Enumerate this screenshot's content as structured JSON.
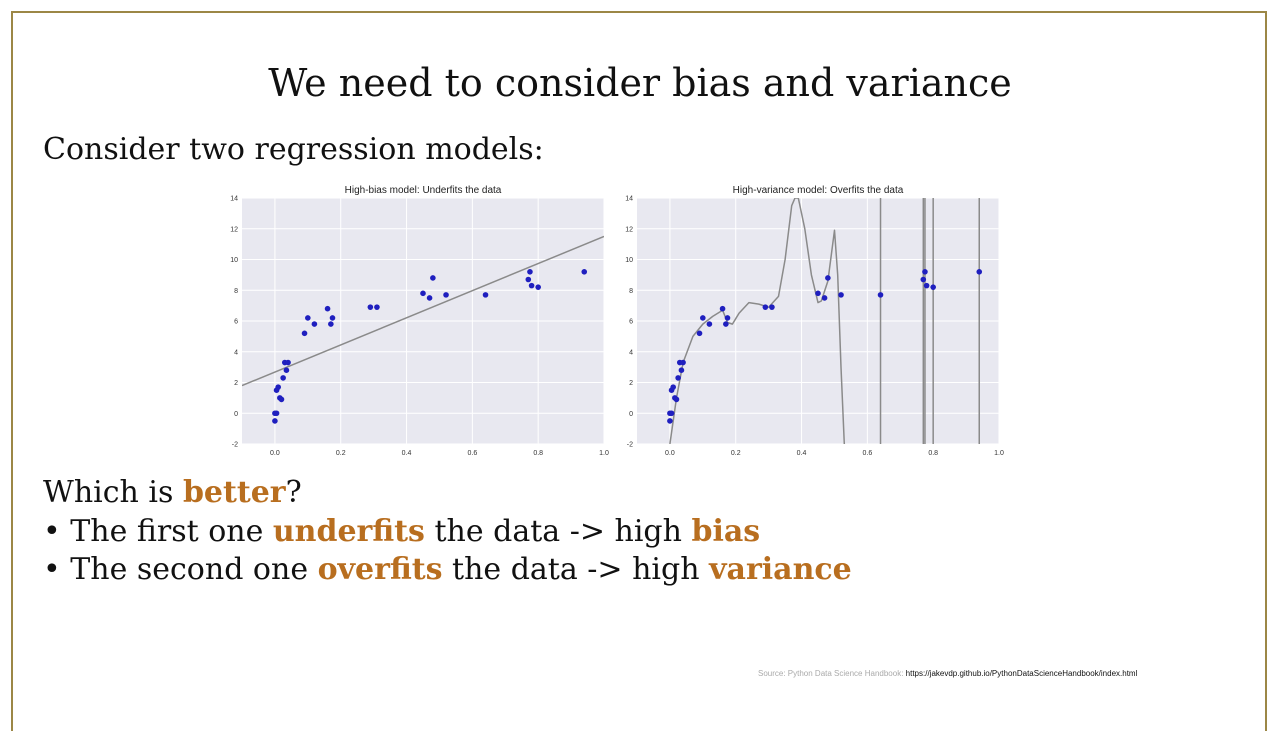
{
  "slide": {
    "title": "We need to consider bias and variance",
    "intro": "Consider two regression models:",
    "question": {
      "pre": "Which is ",
      "highlight": "better",
      "post": "?"
    },
    "bullets": [
      {
        "bullet": "• ",
        "t1": "The first one ",
        "h1": "underfits",
        "t2": " the data -> high ",
        "h2": "bias"
      },
      {
        "bullet": "• ",
        "t1": "The second one ",
        "h1": "overfits",
        "t2": " the data -> high ",
        "h2": "variance"
      }
    ],
    "source": {
      "label": "Source: Python Data Science  Handbook:",
      "url": "https://jakevdp.github.io/PythonDataScienceHandbook/index.html"
    },
    "colors": {
      "highlight": "#b86e1f",
      "frame": "#9c8746",
      "points": "#1f1fbf",
      "fit": "#8a8a8a",
      "plot_bg": "#e8e8f0"
    }
  },
  "chart_data": [
    {
      "type": "scatter",
      "title": "High-bias model: Underfits the data",
      "xlim": [
        -0.1,
        1.0
      ],
      "ylim": [
        -2,
        14
      ],
      "xticks": [
        "0.0",
        "0.2",
        "0.4",
        "0.6",
        "0.8",
        "1.0"
      ],
      "yticks": [
        "-2",
        "0",
        "2",
        "4",
        "6",
        "8",
        "10",
        "12",
        "14"
      ],
      "grid": true,
      "x": [
        0.0,
        0.0,
        0.005,
        0.005,
        0.01,
        0.015,
        0.02,
        0.025,
        0.03,
        0.035,
        0.04,
        0.09,
        0.1,
        0.12,
        0.16,
        0.17,
        0.175,
        0.29,
        0.31,
        0.45,
        0.47,
        0.48,
        0.52,
        0.64,
        0.77,
        0.775,
        0.78,
        0.8,
        0.94
      ],
      "y": [
        -0.5,
        0.0,
        0.0,
        1.5,
        1.7,
        1.0,
        0.9,
        2.3,
        3.3,
        2.8,
        3.3,
        5.2,
        6.2,
        5.8,
        6.8,
        5.8,
        6.2,
        6.9,
        6.9,
        7.8,
        7.5,
        8.8,
        7.7,
        7.7,
        8.7,
        9.2,
        8.3,
        8.2,
        9.2
      ],
      "fit_line": {
        "x": [
          -0.1,
          1.0
        ],
        "y": [
          1.8,
          11.5
        ]
      }
    },
    {
      "type": "scatter",
      "title": "High-variance model: Overfits the data",
      "xlim": [
        -0.1,
        1.0
      ],
      "ylim": [
        -2,
        14
      ],
      "xticks": [
        "0.0",
        "0.2",
        "0.4",
        "0.6",
        "0.8",
        "1.0"
      ],
      "yticks": [
        "-2",
        "0",
        "2",
        "4",
        "6",
        "8",
        "10",
        "12",
        "14"
      ],
      "grid": true,
      "x": [
        0.0,
        0.0,
        0.005,
        0.005,
        0.01,
        0.015,
        0.02,
        0.025,
        0.03,
        0.035,
        0.04,
        0.09,
        0.1,
        0.12,
        0.16,
        0.17,
        0.175,
        0.29,
        0.31,
        0.45,
        0.47,
        0.48,
        0.52,
        0.64,
        0.77,
        0.775,
        0.78,
        0.8,
        0.94
      ],
      "y": [
        -0.5,
        0.0,
        0.0,
        1.5,
        1.7,
        1.0,
        0.9,
        2.3,
        3.3,
        2.8,
        3.3,
        5.2,
        6.2,
        5.8,
        6.8,
        5.8,
        6.2,
        6.9,
        6.9,
        7.8,
        7.5,
        8.8,
        7.7,
        7.7,
        8.7,
        9.2,
        8.3,
        8.2,
        9.2
      ],
      "fit_curve": {
        "x": [
          0.0,
          0.02,
          0.04,
          0.07,
          0.1,
          0.13,
          0.16,
          0.175,
          0.19,
          0.21,
          0.24,
          0.27,
          0.3,
          0.33,
          0.35,
          0.37,
          0.38,
          0.39,
          0.41,
          0.43,
          0.45,
          0.46,
          0.48,
          0.5,
          0.51,
          0.52,
          0.53
        ],
        "y": [
          -2.0,
          1.0,
          3.3,
          5.0,
          5.8,
          6.3,
          6.7,
          5.9,
          5.8,
          6.5,
          7.2,
          7.1,
          6.9,
          7.6,
          10.0,
          13.5,
          14.0,
          14.0,
          12.0,
          9.0,
          7.2,
          7.3,
          8.6,
          11.9,
          9.0,
          3.0,
          -2.0
        ]
      },
      "vertical_spikes": [
        0.64,
        0.77,
        0.775,
        0.8,
        0.94
      ]
    }
  ]
}
